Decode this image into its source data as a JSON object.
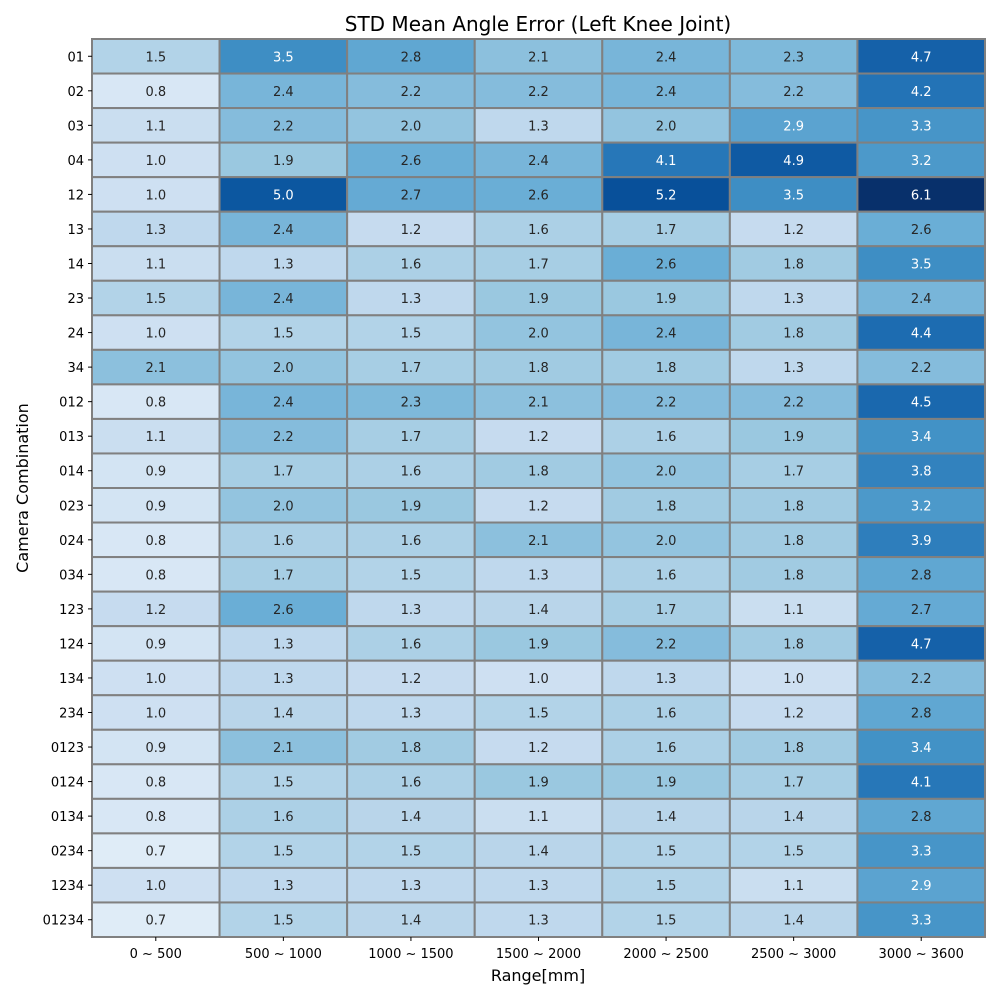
{
  "chart_data": {
    "type": "heatmap",
    "title": "STD Mean Angle Error (Left Knee Joint)",
    "xlabel": "Range[mm]",
    "ylabel": "Camera Combination",
    "x_categories": [
      "0 ~ 500",
      "500 ~ 1000",
      "1000 ~ 1500",
      "1500 ~ 2000",
      "2000 ~ 2500",
      "2500 ~ 3000",
      "3000 ~ 3600"
    ],
    "y_categories": [
      "01",
      "02",
      "03",
      "04",
      "12",
      "13",
      "14",
      "23",
      "24",
      "34",
      "012",
      "013",
      "014",
      "023",
      "024",
      "034",
      "123",
      "124",
      "134",
      "234",
      "0123",
      "0124",
      "0134",
      "0234",
      "1234",
      "01234"
    ],
    "values": [
      [
        1.5,
        3.5,
        2.8,
        2.1,
        2.4,
        2.3,
        4.7
      ],
      [
        0.8,
        2.4,
        2.2,
        2.2,
        2.4,
        2.2,
        4.2
      ],
      [
        1.1,
        2.2,
        2.0,
        1.3,
        2.0,
        2.9,
        3.3
      ],
      [
        1.0,
        1.9,
        2.6,
        2.4,
        4.1,
        4.9,
        3.2
      ],
      [
        1.0,
        5.0,
        2.7,
        2.6,
        5.2,
        3.5,
        6.1
      ],
      [
        1.3,
        2.4,
        1.2,
        1.6,
        1.7,
        1.2,
        2.6
      ],
      [
        1.1,
        1.3,
        1.6,
        1.7,
        2.6,
        1.8,
        3.5
      ],
      [
        1.5,
        2.4,
        1.3,
        1.9,
        1.9,
        1.3,
        2.4
      ],
      [
        1.0,
        1.5,
        1.5,
        2.0,
        2.4,
        1.8,
        4.4
      ],
      [
        2.1,
        2.0,
        1.7,
        1.8,
        1.8,
        1.3,
        2.2
      ],
      [
        0.8,
        2.4,
        2.3,
        2.1,
        2.2,
        2.2,
        4.5
      ],
      [
        1.1,
        2.2,
        1.7,
        1.2,
        1.6,
        1.9,
        3.4
      ],
      [
        0.9,
        1.7,
        1.6,
        1.8,
        2.0,
        1.7,
        3.8
      ],
      [
        0.9,
        2.0,
        1.9,
        1.2,
        1.8,
        1.8,
        3.2
      ],
      [
        0.8,
        1.6,
        1.6,
        2.1,
        2.0,
        1.8,
        3.9
      ],
      [
        0.8,
        1.7,
        1.5,
        1.3,
        1.6,
        1.8,
        2.8
      ],
      [
        1.2,
        2.6,
        1.3,
        1.4,
        1.7,
        1.1,
        2.7
      ],
      [
        0.9,
        1.3,
        1.6,
        1.9,
        2.2,
        1.8,
        4.7
      ],
      [
        1.0,
        1.3,
        1.2,
        1.0,
        1.3,
        1.0,
        2.2
      ],
      [
        1.0,
        1.4,
        1.3,
        1.5,
        1.6,
        1.2,
        2.8
      ],
      [
        0.9,
        2.1,
        1.8,
        1.2,
        1.6,
        1.8,
        3.4
      ],
      [
        0.8,
        1.5,
        1.6,
        1.9,
        1.9,
        1.7,
        4.1
      ],
      [
        0.8,
        1.6,
        1.4,
        1.1,
        1.4,
        1.4,
        2.8
      ],
      [
        0.7,
        1.5,
        1.5,
        1.4,
        1.5,
        1.5,
        3.3
      ],
      [
        1.0,
        1.3,
        1.3,
        1.3,
        1.5,
        1.1,
        2.9
      ],
      [
        0.7,
        1.5,
        1.4,
        1.3,
        1.5,
        1.4,
        3.3
      ]
    ],
    "colormap": "Blues",
    "cell_border_color": "#808080",
    "legend": "none",
    "grid": false
  }
}
